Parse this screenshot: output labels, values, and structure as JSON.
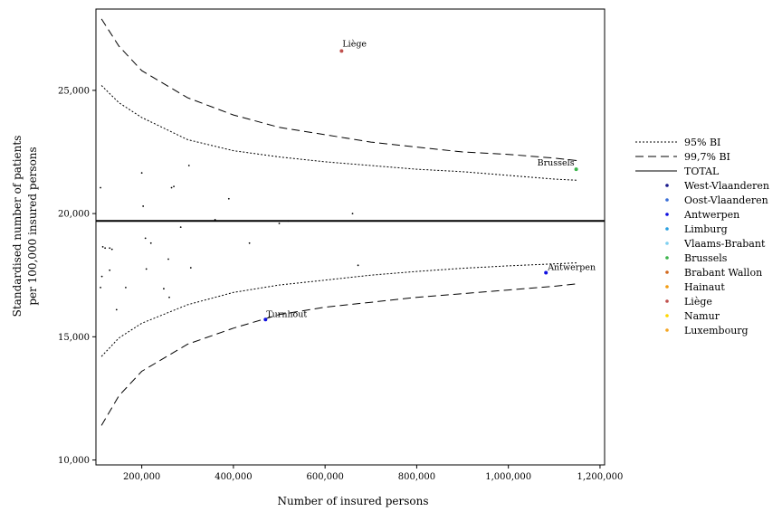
{
  "chart_data": {
    "type": "scatter",
    "title": "",
    "xlabel": "Number of insured persons",
    "ylabel_lines": [
      "Standardised number of patients",
      "per 100,000 insured persons"
    ],
    "xlim": [
      100000,
      1210000
    ],
    "ylim": [
      9800,
      28300
    ],
    "x_ticks": [
      200000,
      400000,
      600000,
      800000,
      1000000,
      1200000
    ],
    "x_tick_labels": [
      "200,000",
      "400,000",
      "600,000",
      "800,000",
      "1,000,000",
      "1,200,000"
    ],
    "y_ticks": [
      10000,
      15000,
      20000,
      25000
    ],
    "y_tick_labels": [
      "10,000",
      "15,000",
      "20,000",
      "25,000"
    ],
    "total": 19700,
    "legend_position": "right",
    "legend": [
      {
        "label": "95% BI",
        "kind": "line",
        "style": "dotted",
        "color": "#000000"
      },
      {
        "label": "99,7% BI",
        "kind": "line",
        "style": "dashed",
        "color": "#000000"
      },
      {
        "label": "TOTAL",
        "kind": "line",
        "style": "solid",
        "color": "#000000"
      },
      {
        "label": "West-Vlaanderen",
        "kind": "point",
        "color": "#1a1a8c"
      },
      {
        "label": "Oost-Vlaanderen",
        "kind": "point",
        "color": "#3a6fd8"
      },
      {
        "label": "Antwerpen",
        "kind": "point",
        "color": "#1010e0"
      },
      {
        "label": "Limburg",
        "kind": "point",
        "color": "#2aa0e0"
      },
      {
        "label": "Vlaams-Brabant",
        "kind": "point",
        "color": "#7fd0f0"
      },
      {
        "label": "Brussels",
        "kind": "point",
        "color": "#3cb44b"
      },
      {
        "label": "Brabant Wallon",
        "kind": "point",
        "color": "#d2691e"
      },
      {
        "label": "Hainaut",
        "kind": "point",
        "color": "#f39c12"
      },
      {
        "label": "Liège",
        "kind": "point",
        "color": "#c0504d"
      },
      {
        "label": "Namur",
        "kind": "point",
        "color": "#ffd700"
      },
      {
        "label": "Luxembourg",
        "kind": "point",
        "color": "#f5a623"
      }
    ],
    "bands": [
      {
        "name": "95% BI upper",
        "style": "dotted",
        "x": [
          112000,
          150000,
          200000,
          300000,
          400000,
          500000,
          600000,
          700000,
          800000,
          900000,
          1000000,
          1100000,
          1150000
        ],
        "y": [
          25200,
          24500,
          23900,
          23000,
          22550,
          22300,
          22100,
          21950,
          21800,
          21700,
          21550,
          21400,
          21350
        ]
      },
      {
        "name": "95% BI lower",
        "style": "dotted",
        "x": [
          112000,
          150000,
          200000,
          300000,
          400000,
          500000,
          600000,
          700000,
          800000,
          900000,
          1000000,
          1100000,
          1150000
        ],
        "y": [
          14200,
          14950,
          15550,
          16300,
          16800,
          17100,
          17300,
          17500,
          17650,
          17780,
          17880,
          17960,
          18000
        ]
      },
      {
        "name": "99,7% BI upper",
        "style": "dashed",
        "x": [
          112000,
          150000,
          200000,
          300000,
          400000,
          500000,
          600000,
          700000,
          800000,
          900000,
          1000000,
          1100000,
          1150000
        ],
        "y": [
          27900,
          26800,
          25800,
          24700,
          24000,
          23500,
          23200,
          22900,
          22700,
          22500,
          22400,
          22250,
          22150
        ]
      },
      {
        "name": "99,7% BI lower",
        "style": "dashed",
        "x": [
          112000,
          150000,
          200000,
          300000,
          400000,
          500000,
          600000,
          700000,
          800000,
          900000,
          1000000,
          1100000,
          1150000
        ],
        "y": [
          11400,
          12600,
          13600,
          14700,
          15350,
          15900,
          16200,
          16400,
          16600,
          16750,
          16900,
          17050,
          17150
        ]
      }
    ],
    "highlighted_points": [
      {
        "label": "Liège",
        "x": 636000,
        "y": 26600,
        "color": "#c0504d"
      },
      {
        "label": "Brussels",
        "x": 1148000,
        "y": 21800,
        "color": "#3cb44b"
      },
      {
        "label": "Antwerpen",
        "x": 1082000,
        "y": 17600,
        "color": "#1010e0"
      },
      {
        "label": "Turnhout",
        "x": 470000,
        "y": 15700,
        "color": "#1010e0"
      }
    ],
    "small_points": {
      "x": [
        110000,
        113000,
        120000,
        135000,
        200000,
        203000,
        265000,
        270000,
        303000,
        390000,
        360000,
        285000,
        500000,
        520000,
        660000,
        208000,
        220000,
        258000,
        435000,
        115000,
        130000,
        210000,
        307000,
        672000,
        110000,
        165000,
        248000,
        145000,
        260000,
        130000
      ],
      "y": [
        21050,
        17450,
        18600,
        18550,
        21650,
        20300,
        21050,
        21100,
        21950,
        20600,
        19750,
        19450,
        19600,
        19700,
        20000,
        19000,
        18800,
        18150,
        18800,
        18650,
        17700,
        17750,
        17800,
        17900,
        17000,
        17000,
        16950,
        16100,
        16600,
        18600
      ]
    }
  }
}
